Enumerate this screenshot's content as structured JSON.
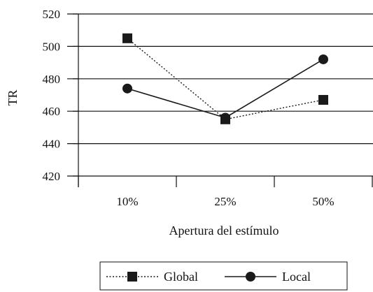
{
  "chart_data": {
    "type": "line",
    "title": "",
    "xlabel": "Apertura del estímulo",
    "ylabel": "TR",
    "categories": [
      "10%",
      "25%",
      "50%"
    ],
    "ylim": [
      420,
      520
    ],
    "yticks": [
      420,
      440,
      460,
      480,
      500,
      520
    ],
    "grid": "horizontal",
    "legend_position": "bottom",
    "series": [
      {
        "name": "Global",
        "values": [
          505,
          455,
          467
        ],
        "marker": "square",
        "line_style": "dotted",
        "color": "#1a1a1a"
      },
      {
        "name": "Local",
        "values": [
          474,
          456,
          492
        ],
        "marker": "circle",
        "line_style": "solid",
        "color": "#1a1a1a"
      }
    ]
  }
}
